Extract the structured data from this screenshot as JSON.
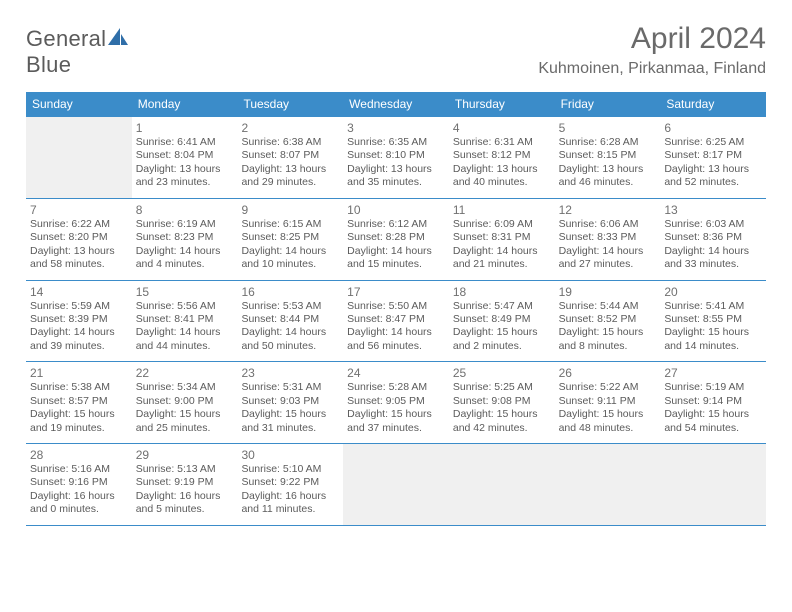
{
  "logo": {
    "word1": "General",
    "word2": "Blue",
    "mark_color": "#2f6ea8"
  },
  "title": {
    "month": "April 2024",
    "location": "Kuhmoinen, Pirkanmaa, Finland"
  },
  "dow_header_bg": "#3b8cc9",
  "dow": [
    "Sunday",
    "Monday",
    "Tuesday",
    "Wednesday",
    "Thursday",
    "Friday",
    "Saturday"
  ],
  "weeks": [
    [
      {
        "empty": true
      },
      {
        "date": "1",
        "sunrise": "Sunrise: 6:41 AM",
        "sunset": "Sunset: 8:04 PM",
        "daylight1": "Daylight: 13 hours",
        "daylight2": "and 23 minutes."
      },
      {
        "date": "2",
        "sunrise": "Sunrise: 6:38 AM",
        "sunset": "Sunset: 8:07 PM",
        "daylight1": "Daylight: 13 hours",
        "daylight2": "and 29 minutes."
      },
      {
        "date": "3",
        "sunrise": "Sunrise: 6:35 AM",
        "sunset": "Sunset: 8:10 PM",
        "daylight1": "Daylight: 13 hours",
        "daylight2": "and 35 minutes."
      },
      {
        "date": "4",
        "sunrise": "Sunrise: 6:31 AM",
        "sunset": "Sunset: 8:12 PM",
        "daylight1": "Daylight: 13 hours",
        "daylight2": "and 40 minutes."
      },
      {
        "date": "5",
        "sunrise": "Sunrise: 6:28 AM",
        "sunset": "Sunset: 8:15 PM",
        "daylight1": "Daylight: 13 hours",
        "daylight2": "and 46 minutes."
      },
      {
        "date": "6",
        "sunrise": "Sunrise: 6:25 AM",
        "sunset": "Sunset: 8:17 PM",
        "daylight1": "Daylight: 13 hours",
        "daylight2": "and 52 minutes."
      }
    ],
    [
      {
        "date": "7",
        "sunrise": "Sunrise: 6:22 AM",
        "sunset": "Sunset: 8:20 PM",
        "daylight1": "Daylight: 13 hours",
        "daylight2": "and 58 minutes."
      },
      {
        "date": "8",
        "sunrise": "Sunrise: 6:19 AM",
        "sunset": "Sunset: 8:23 PM",
        "daylight1": "Daylight: 14 hours",
        "daylight2": "and 4 minutes."
      },
      {
        "date": "9",
        "sunrise": "Sunrise: 6:15 AM",
        "sunset": "Sunset: 8:25 PM",
        "daylight1": "Daylight: 14 hours",
        "daylight2": "and 10 minutes."
      },
      {
        "date": "10",
        "sunrise": "Sunrise: 6:12 AM",
        "sunset": "Sunset: 8:28 PM",
        "daylight1": "Daylight: 14 hours",
        "daylight2": "and 15 minutes."
      },
      {
        "date": "11",
        "sunrise": "Sunrise: 6:09 AM",
        "sunset": "Sunset: 8:31 PM",
        "daylight1": "Daylight: 14 hours",
        "daylight2": "and 21 minutes."
      },
      {
        "date": "12",
        "sunrise": "Sunrise: 6:06 AM",
        "sunset": "Sunset: 8:33 PM",
        "daylight1": "Daylight: 14 hours",
        "daylight2": "and 27 minutes."
      },
      {
        "date": "13",
        "sunrise": "Sunrise: 6:03 AM",
        "sunset": "Sunset: 8:36 PM",
        "daylight1": "Daylight: 14 hours",
        "daylight2": "and 33 minutes."
      }
    ],
    [
      {
        "date": "14",
        "sunrise": "Sunrise: 5:59 AM",
        "sunset": "Sunset: 8:39 PM",
        "daylight1": "Daylight: 14 hours",
        "daylight2": "and 39 minutes."
      },
      {
        "date": "15",
        "sunrise": "Sunrise: 5:56 AM",
        "sunset": "Sunset: 8:41 PM",
        "daylight1": "Daylight: 14 hours",
        "daylight2": "and 44 minutes."
      },
      {
        "date": "16",
        "sunrise": "Sunrise: 5:53 AM",
        "sunset": "Sunset: 8:44 PM",
        "daylight1": "Daylight: 14 hours",
        "daylight2": "and 50 minutes."
      },
      {
        "date": "17",
        "sunrise": "Sunrise: 5:50 AM",
        "sunset": "Sunset: 8:47 PM",
        "daylight1": "Daylight: 14 hours",
        "daylight2": "and 56 minutes."
      },
      {
        "date": "18",
        "sunrise": "Sunrise: 5:47 AM",
        "sunset": "Sunset: 8:49 PM",
        "daylight1": "Daylight: 15 hours",
        "daylight2": "and 2 minutes."
      },
      {
        "date": "19",
        "sunrise": "Sunrise: 5:44 AM",
        "sunset": "Sunset: 8:52 PM",
        "daylight1": "Daylight: 15 hours",
        "daylight2": "and 8 minutes."
      },
      {
        "date": "20",
        "sunrise": "Sunrise: 5:41 AM",
        "sunset": "Sunset: 8:55 PM",
        "daylight1": "Daylight: 15 hours",
        "daylight2": "and 14 minutes."
      }
    ],
    [
      {
        "date": "21",
        "sunrise": "Sunrise: 5:38 AM",
        "sunset": "Sunset: 8:57 PM",
        "daylight1": "Daylight: 15 hours",
        "daylight2": "and 19 minutes."
      },
      {
        "date": "22",
        "sunrise": "Sunrise: 5:34 AM",
        "sunset": "Sunset: 9:00 PM",
        "daylight1": "Daylight: 15 hours",
        "daylight2": "and 25 minutes."
      },
      {
        "date": "23",
        "sunrise": "Sunrise: 5:31 AM",
        "sunset": "Sunset: 9:03 PM",
        "daylight1": "Daylight: 15 hours",
        "daylight2": "and 31 minutes."
      },
      {
        "date": "24",
        "sunrise": "Sunrise: 5:28 AM",
        "sunset": "Sunset: 9:05 PM",
        "daylight1": "Daylight: 15 hours",
        "daylight2": "and 37 minutes."
      },
      {
        "date": "25",
        "sunrise": "Sunrise: 5:25 AM",
        "sunset": "Sunset: 9:08 PM",
        "daylight1": "Daylight: 15 hours",
        "daylight2": "and 42 minutes."
      },
      {
        "date": "26",
        "sunrise": "Sunrise: 5:22 AM",
        "sunset": "Sunset: 9:11 PM",
        "daylight1": "Daylight: 15 hours",
        "daylight2": "and 48 minutes."
      },
      {
        "date": "27",
        "sunrise": "Sunrise: 5:19 AM",
        "sunset": "Sunset: 9:14 PM",
        "daylight1": "Daylight: 15 hours",
        "daylight2": "and 54 minutes."
      }
    ],
    [
      {
        "date": "28",
        "sunrise": "Sunrise: 5:16 AM",
        "sunset": "Sunset: 9:16 PM",
        "daylight1": "Daylight: 16 hours",
        "daylight2": "and 0 minutes."
      },
      {
        "date": "29",
        "sunrise": "Sunrise: 5:13 AM",
        "sunset": "Sunset: 9:19 PM",
        "daylight1": "Daylight: 16 hours",
        "daylight2": "and 5 minutes."
      },
      {
        "date": "30",
        "sunrise": "Sunrise: 5:10 AM",
        "sunset": "Sunset: 9:22 PM",
        "daylight1": "Daylight: 16 hours",
        "daylight2": "and 11 minutes."
      },
      {
        "empty": true
      },
      {
        "empty": true
      },
      {
        "empty": true
      },
      {
        "empty": true
      }
    ]
  ]
}
